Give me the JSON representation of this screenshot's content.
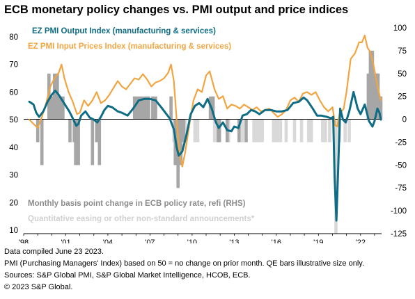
{
  "chart_data": {
    "type": "line",
    "title": "ECB monetary policy changes vs. PMI output and price indices",
    "x_tick_labels": [
      "'98",
      "'01",
      "'04",
      "'07",
      "'10",
      "'13",
      "'16",
      "'19",
      "'22"
    ],
    "x_range": [
      1998.0,
      2023.5
    ],
    "left_axis": {
      "ticks": [
        10,
        20,
        30,
        40,
        50,
        60,
        70,
        80
      ],
      "range": [
        10,
        82
      ]
    },
    "right_axis": {
      "ticks": [
        -125,
        -100,
        -75,
        -50,
        -25,
        0,
        25,
        50,
        75,
        100
      ],
      "range": [
        -125,
        100
      ]
    },
    "grid": false,
    "legend_position": "top-left",
    "series": [
      {
        "name": "EZ PMI Output Index (manufacturing & services)",
        "axis": "left",
        "color": "#0e6c84",
        "points": [
          [
            1998.4,
            56.5
          ],
          [
            1998.7,
            55.5
          ],
          [
            1998.9,
            52.5
          ],
          [
            1999.1,
            51.0
          ],
          [
            1999.4,
            53.0
          ],
          [
            1999.7,
            56.5
          ],
          [
            2000.0,
            59.0
          ],
          [
            2000.25,
            60.5
          ],
          [
            2000.5,
            59.0
          ],
          [
            2000.75,
            57.0
          ],
          [
            2001.0,
            55.0
          ],
          [
            2001.25,
            53.0
          ],
          [
            2001.5,
            50.5
          ],
          [
            2001.75,
            47.8
          ],
          [
            2001.9,
            48.5
          ],
          [
            2002.1,
            51.5
          ],
          [
            2002.4,
            53.0
          ],
          [
            2002.7,
            50.8
          ],
          [
            2003.0,
            50.0
          ],
          [
            2003.25,
            49.0
          ],
          [
            2003.5,
            51.0
          ],
          [
            2003.75,
            53.5
          ],
          [
            2004.0,
            55.0
          ],
          [
            2004.3,
            54.5
          ],
          [
            2004.7,
            53.0
          ],
          [
            2005.0,
            52.5
          ],
          [
            2005.4,
            51.5
          ],
          [
            2005.8,
            54.0
          ],
          [
            2006.2,
            57.0
          ],
          [
            2006.6,
            57.5
          ],
          [
            2007.0,
            57.5
          ],
          [
            2007.4,
            57.0
          ],
          [
            2007.8,
            54.5
          ],
          [
            2008.1,
            52.5
          ],
          [
            2008.4,
            50.5
          ],
          [
            2008.7,
            46.5
          ],
          [
            2008.9,
            40.0
          ],
          [
            2009.05,
            37.0
          ],
          [
            2009.3,
            38.5
          ],
          [
            2009.6,
            44.5
          ],
          [
            2009.9,
            52.0
          ],
          [
            2010.2,
            55.0
          ],
          [
            2010.5,
            56.0
          ],
          [
            2010.8,
            54.5
          ],
          [
            2011.1,
            57.5
          ],
          [
            2011.4,
            54.0
          ],
          [
            2011.7,
            49.0
          ],
          [
            2011.9,
            47.0
          ],
          [
            2012.2,
            49.0
          ],
          [
            2012.5,
            46.2
          ],
          [
            2012.8,
            45.8
          ],
          [
            2013.0,
            47.5
          ],
          [
            2013.3,
            47.0
          ],
          [
            2013.6,
            51.5
          ],
          [
            2013.9,
            52.0
          ],
          [
            2014.2,
            53.5
          ],
          [
            2014.5,
            53.0
          ],
          [
            2014.8,
            52.0
          ],
          [
            2015.2,
            53.5
          ],
          [
            2015.6,
            53.5
          ],
          [
            2016.0,
            53.0
          ],
          [
            2016.4,
            53.0
          ],
          [
            2016.8,
            53.5
          ],
          [
            2017.2,
            56.0
          ],
          [
            2017.6,
            56.5
          ],
          [
            2017.95,
            58.0
          ],
          [
            2018.2,
            57.0
          ],
          [
            2018.6,
            54.0
          ],
          [
            2018.9,
            51.5
          ],
          [
            2019.2,
            51.5
          ],
          [
            2019.6,
            51.0
          ],
          [
            2019.9,
            50.5
          ],
          [
            2020.05,
            51.0
          ],
          [
            2020.15,
            29.5
          ],
          [
            2020.28,
            13.5
          ],
          [
            2020.4,
            31.0
          ],
          [
            2020.55,
            54.0
          ],
          [
            2020.75,
            50.0
          ],
          [
            2020.95,
            49.0
          ],
          [
            2021.2,
            53.0
          ],
          [
            2021.5,
            60.0
          ],
          [
            2021.8,
            54.0
          ],
          [
            2022.0,
            52.0
          ],
          [
            2022.3,
            55.5
          ],
          [
            2022.6,
            49.5
          ],
          [
            2022.85,
            47.5
          ],
          [
            2023.0,
            49.5
          ],
          [
            2023.2,
            54.0
          ],
          [
            2023.35,
            52.5
          ],
          [
            2023.45,
            50.0
          ]
        ]
      },
      {
        "name": "EZ PMI Input Prices Index (manufacturing & services)",
        "axis": "left",
        "color": "#f0a542",
        "points": [
          [
            1998.4,
            50.0
          ],
          [
            1998.7,
            48.5
          ],
          [
            1999.0,
            47.0
          ],
          [
            1999.3,
            51.0
          ],
          [
            1999.6,
            56.0
          ],
          [
            1999.9,
            62.0
          ],
          [
            2000.2,
            65.0
          ],
          [
            2000.5,
            67.0
          ],
          [
            2000.7,
            70.0
          ],
          [
            2000.9,
            65.0
          ],
          [
            2001.2,
            60.0
          ],
          [
            2001.5,
            56.5
          ],
          [
            2001.8,
            52.0
          ],
          [
            2002.0,
            52.5
          ],
          [
            2002.3,
            57.0
          ],
          [
            2002.6,
            55.0
          ],
          [
            2002.9,
            57.0
          ],
          [
            2003.2,
            60.0
          ],
          [
            2003.5,
            56.0
          ],
          [
            2003.8,
            57.0
          ],
          [
            2004.1,
            59.0
          ],
          [
            2004.4,
            61.5
          ],
          [
            2004.7,
            64.0
          ],
          [
            2005.0,
            62.0
          ],
          [
            2005.3,
            61.0
          ],
          [
            2005.6,
            63.0
          ],
          [
            2005.9,
            65.0
          ],
          [
            2006.2,
            64.5
          ],
          [
            2006.5,
            66.5
          ],
          [
            2006.8,
            64.5
          ],
          [
            2007.1,
            62.0
          ],
          [
            2007.4,
            63.5
          ],
          [
            2007.7,
            64.0
          ],
          [
            2008.0,
            65.0
          ],
          [
            2008.3,
            67.0
          ],
          [
            2008.5,
            70.0
          ],
          [
            2008.7,
            64.0
          ],
          [
            2008.9,
            50.0
          ],
          [
            2009.1,
            38.0
          ],
          [
            2009.3,
            33.0
          ],
          [
            2009.5,
            38.0
          ],
          [
            2009.8,
            48.0
          ],
          [
            2010.1,
            57.0
          ],
          [
            2010.4,
            61.0
          ],
          [
            2010.7,
            60.0
          ],
          [
            2011.0,
            66.0
          ],
          [
            2011.25,
            67.5
          ],
          [
            2011.6,
            61.0
          ],
          [
            2011.9,
            57.5
          ],
          [
            2012.2,
            58.5
          ],
          [
            2012.5,
            54.0
          ],
          [
            2012.8,
            55.5
          ],
          [
            2013.1,
            55.0
          ],
          [
            2013.4,
            54.0
          ],
          [
            2013.7,
            55.5
          ],
          [
            2014.0,
            54.5
          ],
          [
            2014.3,
            53.5
          ],
          [
            2014.6,
            54.5
          ],
          [
            2014.9,
            53.0
          ],
          [
            2015.2,
            53.5
          ],
          [
            2015.5,
            54.0
          ],
          [
            2015.8,
            52.5
          ],
          [
            2016.1,
            51.0
          ],
          [
            2016.4,
            52.0
          ],
          [
            2016.7,
            53.5
          ],
          [
            2017.0,
            57.0
          ],
          [
            2017.3,
            58.0
          ],
          [
            2017.6,
            56.5
          ],
          [
            2017.9,
            59.5
          ],
          [
            2018.2,
            60.0
          ],
          [
            2018.5,
            59.0
          ],
          [
            2018.8,
            60.0
          ],
          [
            2019.1,
            57.0
          ],
          [
            2019.4,
            54.5
          ],
          [
            2019.7,
            53.0
          ],
          [
            2020.0,
            54.5
          ],
          [
            2020.2,
            48.0
          ],
          [
            2020.35,
            47.5
          ],
          [
            2020.5,
            52.0
          ],
          [
            2020.8,
            54.0
          ],
          [
            2021.0,
            60.0
          ],
          [
            2021.3,
            72.0
          ],
          [
            2021.6,
            74.0
          ],
          [
            2021.9,
            78.0
          ],
          [
            2022.1,
            78.0
          ],
          [
            2022.3,
            80.5
          ],
          [
            2022.5,
            76.0
          ],
          [
            2022.7,
            74.5
          ],
          [
            2022.9,
            70.5
          ],
          [
            2023.1,
            65.0
          ],
          [
            2023.3,
            60.0
          ],
          [
            2023.45,
            57.0
          ]
        ]
      }
    ],
    "bars": [
      {
        "name": "Monthly basis point change in ECB policy rate, refi (RHS)",
        "axis": "right",
        "color": "#a6a6a6",
        "items": [
          [
            1999.0,
            -25
          ],
          [
            1999.3,
            -50
          ],
          [
            1999.8,
            50
          ],
          [
            2000.0,
            25
          ],
          [
            2000.1,
            25
          ],
          [
            2000.2,
            50
          ],
          [
            2000.4,
            50
          ],
          [
            2000.6,
            25
          ],
          [
            2000.8,
            25
          ],
          [
            2001.3,
            -25
          ],
          [
            2001.6,
            -25
          ],
          [
            2001.7,
            -50
          ],
          [
            2001.9,
            -50
          ],
          [
            2002.9,
            -50
          ],
          [
            2003.2,
            -25
          ],
          [
            2003.4,
            -50
          ],
          [
            2005.9,
            25
          ],
          [
            2006.1,
            25
          ],
          [
            2006.3,
            25
          ],
          [
            2006.5,
            25
          ],
          [
            2006.7,
            25
          ],
          [
            2006.9,
            25
          ],
          [
            2007.2,
            25
          ],
          [
            2007.4,
            25
          ],
          [
            2008.5,
            25
          ],
          [
            2008.8,
            -50
          ],
          [
            2008.9,
            -50
          ],
          [
            2009.0,
            -75
          ],
          [
            2009.05,
            -50
          ],
          [
            2009.2,
            -50
          ],
          [
            2009.3,
            -25
          ],
          [
            2009.4,
            -25
          ],
          [
            2011.3,
            25
          ],
          [
            2011.5,
            25
          ],
          [
            2011.85,
            -25
          ],
          [
            2011.95,
            -25
          ],
          [
            2012.5,
            -25
          ],
          [
            2013.35,
            -25
          ],
          [
            2013.85,
            -25
          ],
          [
            2023.1,
            50
          ],
          [
            2023.2,
            50
          ],
          [
            2023.25,
            50
          ],
          [
            2023.35,
            25
          ],
          [
            2023.45,
            25
          ],
          [
            2022.55,
            50
          ],
          [
            2022.7,
            75
          ],
          [
            2022.85,
            75
          ],
          [
            2022.95,
            50
          ],
          [
            2023.0,
            50
          ]
        ]
      },
      {
        "name": "Quantitative easing or other non-standard announcements*",
        "axis": "right",
        "color": "#d9d9d9",
        "items": [
          [
            2008.7,
            -25
          ],
          [
            2009.5,
            -25
          ],
          [
            2010.2,
            -25
          ],
          [
            2010.4,
            -25
          ],
          [
            2011.6,
            -25
          ],
          [
            2011.9,
            -25
          ],
          [
            2012.6,
            -25
          ],
          [
            2013.6,
            -25
          ],
          [
            2014.4,
            -25
          ],
          [
            2014.5,
            -25
          ],
          [
            2014.7,
            -25
          ],
          [
            2014.9,
            -25
          ],
          [
            2015.0,
            -25
          ],
          [
            2015.8,
            -25
          ],
          [
            2016.0,
            -25
          ],
          [
            2016.2,
            -25
          ],
          [
            2016.3,
            -25
          ],
          [
            2016.7,
            -25
          ],
          [
            2017.3,
            -25
          ],
          [
            2017.8,
            -25
          ],
          [
            2018.3,
            -25
          ],
          [
            2018.5,
            -25
          ],
          [
            2019.3,
            -25
          ],
          [
            2019.5,
            -25
          ],
          [
            2019.8,
            -25
          ],
          [
            2020.25,
            -125
          ],
          [
            2020.5,
            -25
          ],
          [
            2020.9,
            -25
          ],
          [
            2021.2,
            -25
          ]
        ]
      }
    ]
  },
  "footer": {
    "line1": "Data compiled June 23 2023.",
    "line2": "PMI (Purchasing Managers' Index) based on 50 = no change on prior month. QE bars illustrative size only.",
    "line3": "Sources: S&P Global PMI, S&P Global Market Intelligence, HCOB, ECB.",
    "line4": "© 2023 S&P Global."
  }
}
